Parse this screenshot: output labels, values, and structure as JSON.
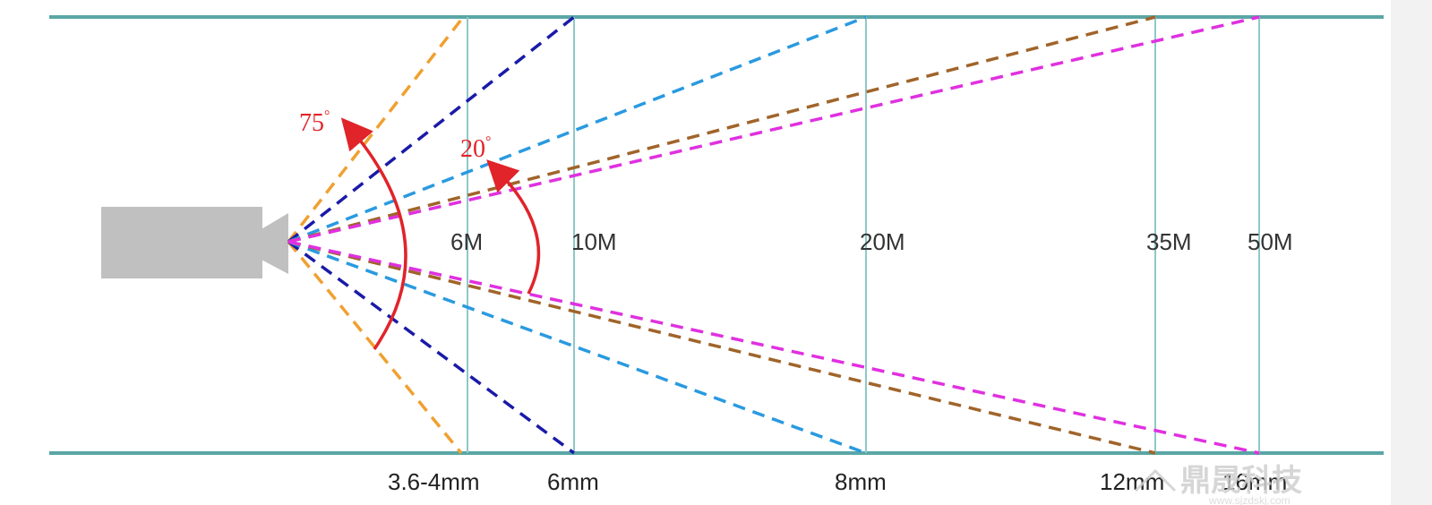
{
  "distance_labels": [
    "6M",
    "10M",
    "20M",
    "35M",
    "50M"
  ],
  "lens_labels": [
    "3.6-4mm",
    "6mm",
    "8mm",
    "12mm",
    "16mm"
  ],
  "angle_labels": {
    "wide": "75",
    "narrow": "20",
    "degree_mark": "°"
  },
  "lenses": [
    {
      "label": "3.6-4mm",
      "color": "#f0a030"
    },
    {
      "label": "6mm",
      "color": "#1a1aa8"
    },
    {
      "label": "8mm",
      "color": "#2a9ae0"
    },
    {
      "label": "12mm",
      "color": "#a0642a"
    },
    {
      "label": "16mm",
      "color": "#e030e0"
    }
  ],
  "colors": {
    "boundary_line": "#5aa6a6",
    "distance_line": "#8ec8c8",
    "camera": "#c0c0c0",
    "angle_arc": "#e0242a"
  },
  "watermark": {
    "text": "鼎晟科技",
    "subtext": "www.sjzdskj.com"
  }
}
